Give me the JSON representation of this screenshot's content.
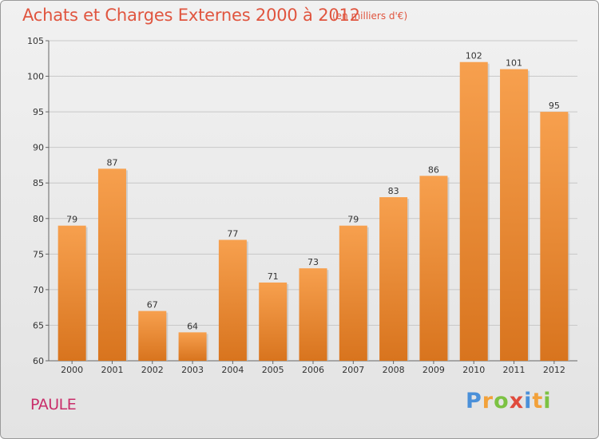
{
  "chart_data": {
    "type": "bar",
    "title": "Achats et Charges Externes 2000 à 2012",
    "unit_note": "(en milliers d'€)",
    "categories": [
      "2000",
      "2001",
      "2002",
      "2003",
      "2004",
      "2005",
      "2006",
      "2007",
      "2008",
      "2009",
      "2010",
      "2011",
      "2012"
    ],
    "values": [
      79,
      87,
      67,
      64,
      77,
      71,
      73,
      79,
      83,
      86,
      102,
      101,
      95
    ],
    "ylim": [
      60,
      105
    ],
    "yticks": [
      60,
      65,
      70,
      75,
      80,
      85,
      90,
      95,
      100,
      105
    ],
    "grid": true,
    "legend": "none",
    "bar_color_top": "#f7a04e",
    "bar_color_bottom": "#d8741e"
  },
  "commune_label": "PAULE",
  "logo": {
    "letters": [
      "P",
      "r",
      "o",
      "x",
      "i",
      "t",
      "i"
    ],
    "colors": [
      "#4a90d9",
      "#f2a13a",
      "#7cc243",
      "#e04b3c",
      "#4a90d9",
      "#f2a13a",
      "#7cc243"
    ]
  }
}
